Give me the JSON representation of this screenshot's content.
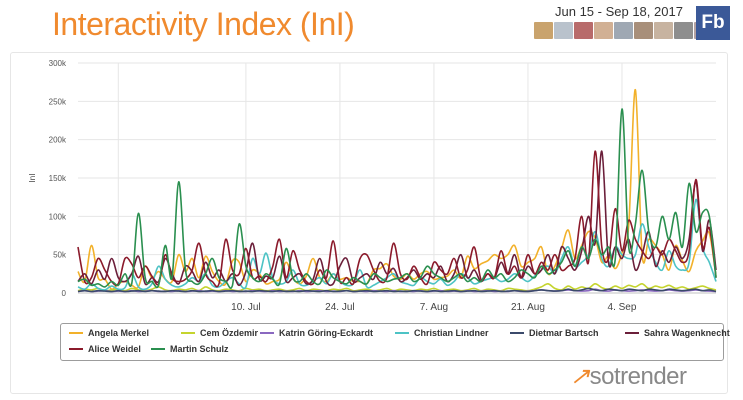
{
  "header": {
    "title": "Interactivity Index (InI)",
    "date_range": "Jun 15 - Sep 18, 2017",
    "network_badge": "Fb",
    "avatar_count": 9,
    "avatar_colors": [
      "#c9a36d",
      "#b9c2cc",
      "#b86b6b",
      "#d1b094",
      "#9fa8b3",
      "#a88f7a",
      "#c7b3a0",
      "#8e8e8e",
      "#b3a2a2"
    ]
  },
  "brand": {
    "logo_mark": "↗",
    "name": "sotrender"
  },
  "chart_data": {
    "type": "line",
    "title": "Interactivity Index (InI)",
    "xlabel": "",
    "ylabel": "InI",
    "ylim": [
      0,
      300000
    ],
    "yticks": [
      0,
      50000,
      100000,
      150000,
      200000,
      250000,
      300000
    ],
    "ytick_labels": [
      "0",
      "50k",
      "100k",
      "150k",
      "200k",
      "250k",
      "300k"
    ],
    "x_start_day": 0,
    "x_end_day": 95,
    "xticks_day": [
      25,
      39,
      53,
      67,
      81
    ],
    "xtick_labels": [
      "10. Jul",
      "24. Jul",
      "7. Aug",
      "21. Aug",
      "4. Sep"
    ],
    "legend_position": "bottom",
    "series": [
      {
        "name": "Angela Merkel",
        "color": "#f2b12a",
        "values": [
          28000,
          15000,
          62000,
          20000,
          18000,
          5000,
          12000,
          15000,
          10000,
          8000,
          35000,
          20000,
          28000,
          18000,
          15000,
          50000,
          28000,
          45000,
          20000,
          48000,
          28000,
          15000,
          12000,
          42000,
          40000,
          15000,
          30000,
          25000,
          12000,
          15000,
          18000,
          40000,
          20000,
          12000,
          22000,
          45000,
          20000,
          15000,
          25000,
          18000,
          20000,
          15000,
          15000,
          12000,
          30000,
          32000,
          38000,
          22000,
          18000,
          25000,
          18000,
          25000,
          28000,
          18000,
          20000,
          22000,
          30000,
          20000,
          48000,
          32000,
          38000,
          42000,
          50000,
          45000,
          50000,
          62000,
          35000,
          40000,
          45000,
          60000,
          25000,
          35000,
          58000,
          82000,
          45000,
          62000,
          80000,
          72000,
          40000,
          48000,
          32000,
          52000,
          88000,
          265000,
          50000,
          70000,
          62000,
          50000,
          30000,
          62000,
          42000,
          28000,
          55000,
          68000,
          78000,
          22000
        ]
      },
      {
        "name": "Cem Özdemir",
        "color": "#c5d42e",
        "values": [
          3000,
          5000,
          4000,
          6000,
          3000,
          4000,
          5000,
          3000,
          6000,
          4000,
          3000,
          5000,
          8000,
          4000,
          3000,
          5000,
          4000,
          6000,
          3000,
          8000,
          4000,
          3000,
          5000,
          4000,
          3000,
          6000,
          4000,
          5000,
          3000,
          4000,
          5000,
          3000,
          4000,
          6000,
          3000,
          5000,
          4000,
          3000,
          5000,
          4000,
          6000,
          3000,
          4000,
          5000,
          3000,
          4000,
          6000,
          3000,
          5000,
          4000,
          3000,
          5000,
          4000,
          6000,
          3000,
          4000,
          5000,
          3000,
          4000,
          6000,
          3000,
          5000,
          4000,
          3000,
          6000,
          5000,
          4000,
          3000,
          5000,
          8000,
          12000,
          6000,
          4000,
          9000,
          5000,
          8000,
          6000,
          12000,
          7000,
          5000,
          9000,
          6000,
          10000,
          8000,
          12000,
          6000,
          9000,
          7000,
          10000,
          6000,
          8000,
          5000,
          7000,
          9000,
          6000,
          4000
        ]
      },
      {
        "name": "Katrin Göring-Eckardt",
        "color": "#8a68c0",
        "values": [
          2000,
          3000,
          2000,
          2500,
          3000,
          2000,
          2500,
          2000,
          3000,
          2000,
          2500,
          3000,
          2000,
          2500,
          2000,
          3000,
          2000,
          2500,
          3000,
          2000,
          2500,
          2000,
          3000,
          2000,
          2500,
          2000,
          3000,
          2500,
          2000,
          3000,
          2000,
          2500,
          2000,
          3000,
          2000,
          2500,
          3000,
          2000,
          2500,
          2000,
          3000,
          2000,
          2500,
          2000,
          3000,
          2500,
          2000,
          3000,
          2000,
          2500,
          2000,
          3000,
          2000,
          2500,
          3000,
          2000,
          2500,
          2000,
          3000,
          2000,
          2500,
          3000,
          2000,
          2500,
          2000,
          3000,
          2000,
          2500,
          3000,
          4000,
          3000,
          2500,
          3000,
          4000,
          3000,
          2500,
          3000,
          5000,
          3000,
          2500,
          4000,
          3000,
          2500,
          3000,
          4000,
          3000,
          2500,
          3000,
          4000,
          3000,
          2500,
          3000,
          4000,
          3000,
          2500,
          2000
        ]
      },
      {
        "name": "Christian Lindner",
        "color": "#4dc3c5",
        "values": [
          8000,
          5000,
          12000,
          6000,
          4000,
          9000,
          5000,
          7000,
          25000,
          8000,
          5000,
          12000,
          35000,
          18000,
          10000,
          8000,
          12000,
          20000,
          15000,
          25000,
          10000,
          8000,
          15000,
          20000,
          12000,
          8000,
          45000,
          25000,
          52000,
          20000,
          12000,
          15000,
          30000,
          12000,
          10000,
          15000,
          20000,
          12000,
          25000,
          15000,
          10000,
          12000,
          30000,
          8000,
          10000,
          15000,
          20000,
          25000,
          15000,
          12000,
          10000,
          20000,
          15000,
          12000,
          18000,
          10000,
          15000,
          25000,
          20000,
          12000,
          15000,
          18000,
          20000,
          15000,
          18000,
          25000,
          20000,
          15000,
          22000,
          30000,
          35000,
          25000,
          45000,
          60000,
          35000,
          40000,
          50000,
          80000,
          45000,
          35000,
          60000,
          50000,
          45000,
          50000,
          90000,
          60000,
          40000,
          30000,
          55000,
          35000,
          30000,
          40000,
          122000,
          60000,
          40000,
          15000
        ]
      },
      {
        "name": "Dietmar Bartsch",
        "color": "#3b4a6b",
        "values": [
          2000,
          3000,
          2000,
          3000,
          2500,
          2000,
          3000,
          2000,
          2500,
          3000,
          2000,
          3000,
          2500,
          2000,
          3000,
          2500,
          2000,
          3000,
          2000,
          2500,
          3000,
          2000,
          2500,
          3000,
          2000,
          2500,
          2000,
          3000,
          2500,
          2000,
          3000,
          2000,
          2500,
          2000,
          3000,
          2500,
          2000,
          3000,
          2000,
          2500,
          3000,
          2000,
          2500,
          3000,
          2000,
          2500,
          3000,
          2000,
          2500,
          2000,
          3000,
          2500,
          2000,
          3000,
          2000,
          2500,
          3000,
          2000,
          2500,
          3000,
          2000,
          2500,
          3000,
          2000,
          2500,
          3000,
          2500,
          2000,
          3000,
          4000,
          3000,
          2500,
          3000,
          5000,
          3000,
          4000,
          6000,
          4000,
          3000,
          5000,
          4000,
          3000,
          5000,
          4000,
          3000,
          5000,
          4000,
          3000,
          5000,
          4000,
          3000,
          4000,
          5000,
          3000,
          4000,
          2000
        ]
      },
      {
        "name": "Sahra Wagenknecht",
        "color": "#6b1f3a",
        "values": [
          15000,
          25000,
          12000,
          30000,
          18000,
          45000,
          20000,
          15000,
          25000,
          48000,
          12000,
          20000,
          15000,
          45000,
          25000,
          12000,
          35000,
          28000,
          15000,
          40000,
          20000,
          30000,
          15000,
          25000,
          10000,
          28000,
          65000,
          18000,
          22000,
          20000,
          48000,
          15000,
          20000,
          25000,
          12000,
          18000,
          45000,
          15000,
          12000,
          35000,
          45000,
          15000,
          20000,
          25000,
          18000,
          40000,
          25000,
          32000,
          15000,
          20000,
          30000,
          18000,
          25000,
          20000,
          35000,
          15000,
          25000,
          50000,
          20000,
          30000,
          15000,
          25000,
          20000,
          40000,
          25000,
          50000,
          20000,
          35000,
          25000,
          30000,
          50000,
          25000,
          60000,
          45000,
          30000,
          55000,
          100000,
          65000,
          185000,
          40000,
          60000,
          45000,
          70000,
          30000,
          50000,
          80000,
          35000,
          55000,
          40000,
          60000,
          45000,
          70000,
          145000,
          55000,
          95000,
          30000
        ]
      },
      {
        "name": "Alice Weidel",
        "color": "#8b1a2b",
        "values": [
          60000,
          15000,
          20000,
          45000,
          30000,
          15000,
          12000,
          45000,
          38000,
          20000,
          35000,
          22000,
          12000,
          50000,
          20000,
          15000,
          18000,
          30000,
          65000,
          25000,
          15000,
          12000,
          70000,
          30000,
          25000,
          58000,
          20000,
          22000,
          15000,
          35000,
          70000,
          20000,
          55000,
          30000,
          15000,
          12000,
          30000,
          20000,
          68000,
          15000,
          20000,
          12000,
          45000,
          50000,
          30000,
          15000,
          20000,
          65000,
          25000,
          18000,
          35000,
          20000,
          12000,
          40000,
          30000,
          25000,
          45000,
          20000,
          30000,
          60000,
          18000,
          25000,
          20000,
          55000,
          25000,
          35000,
          20000,
          50000,
          25000,
          40000,
          30000,
          50000,
          30000,
          35000,
          45000,
          100000,
          40000,
          185000,
          60000,
          45000,
          110000,
          55000,
          95000,
          70000,
          55000,
          45000,
          60000,
          50000,
          70000,
          55000,
          40000,
          55000,
          148000,
          60000,
          85000,
          20000
        ]
      },
      {
        "name": "Martin Schulz",
        "color": "#2a8f4f",
        "values": [
          15000,
          18000,
          10000,
          12000,
          8000,
          15000,
          10000,
          25000,
          12000,
          104000,
          20000,
          15000,
          10000,
          62000,
          20000,
          145000,
          30000,
          15000,
          12000,
          25000,
          45000,
          20000,
          15000,
          10000,
          90000,
          35000,
          20000,
          15000,
          25000,
          18000,
          12000,
          58000,
          20000,
          15000,
          25000,
          15000,
          12000,
          30000,
          20000,
          15000,
          12000,
          20000,
          15000,
          12000,
          25000,
          20000,
          15000,
          18000,
          20000,
          25000,
          15000,
          20000,
          35000,
          25000,
          20000,
          15000,
          20000,
          25000,
          15000,
          20000,
          15000,
          30000,
          20000,
          25000,
          15000,
          20000,
          30000,
          25000,
          20000,
          35000,
          25000,
          30000,
          40000,
          55000,
          35000,
          60000,
          45000,
          70000,
          50000,
          60000,
          45000,
          240000,
          60000,
          90000,
          160000,
          80000,
          60000,
          100000,
          70000,
          105000,
          60000,
          143000,
          80000,
          105000,
          100000,
          20000
        ]
      }
    ]
  }
}
